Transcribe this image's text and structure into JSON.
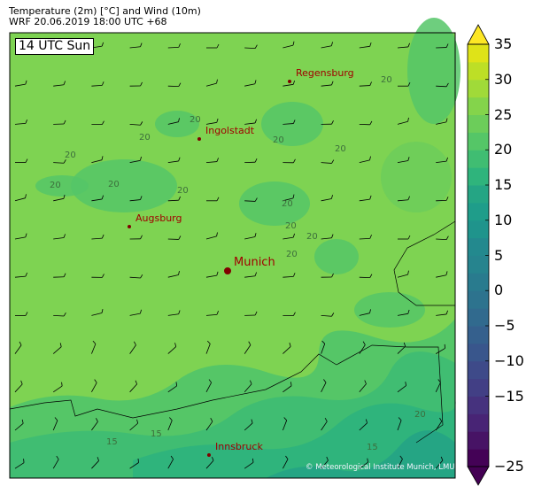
{
  "header": {
    "title_line1": "Temperature (2m) [°C] and Wind (10m)",
    "title_line2": "WRF 20.06.2019 18:00 UTC +68"
  },
  "map": {
    "time_label": "14 UTC Sun",
    "cities": [
      {
        "name": "Regensburg"
      },
      {
        "name": "Ingolstadt"
      },
      {
        "name": "Augsburg"
      },
      {
        "name": "Munich"
      },
      {
        "name": "Innsbruck"
      }
    ],
    "contour_labels": [
      "20",
      "20",
      "20",
      "20",
      "20",
      "20",
      "20",
      "20",
      "20",
      "20",
      "20",
      "20",
      "15",
      "15",
      "15",
      "20",
      "20"
    ],
    "copyright": "© Meteorological Institute Munich, LMU",
    "colors": {
      "background": "#7ed352",
      "city_label": "#a00000",
      "contour": "#3c6e3c"
    }
  },
  "colorbar": {
    "ticks": [
      "35",
      "30",
      "25",
      "20",
      "15",
      "10",
      "5",
      "0",
      "−5",
      "−10",
      "−15",
      "−25"
    ],
    "tick_values": [
      35,
      30,
      25,
      20,
      15,
      10,
      5,
      0,
      -5,
      -10,
      -15,
      -25
    ],
    "range": [
      -25,
      35
    ],
    "step": 2.5,
    "colors": [
      "#440256",
      "#471365",
      "#482475",
      "#46327e",
      "#423f85",
      "#3e4a89",
      "#39568c",
      "#35608d",
      "#316a8e",
      "#2d738e",
      "#297b8e",
      "#26848e",
      "#23898e",
      "#1f948c",
      "#1f9d8a",
      "#25a584",
      "#2fb47c",
      "#40bd72",
      "#55c667",
      "#6ccd5a",
      "#84d44b",
      "#a0da39",
      "#bddf26",
      "#dfe318"
    ],
    "extend_max_color": "#fde725",
    "extend_min_color": "#440154"
  }
}
